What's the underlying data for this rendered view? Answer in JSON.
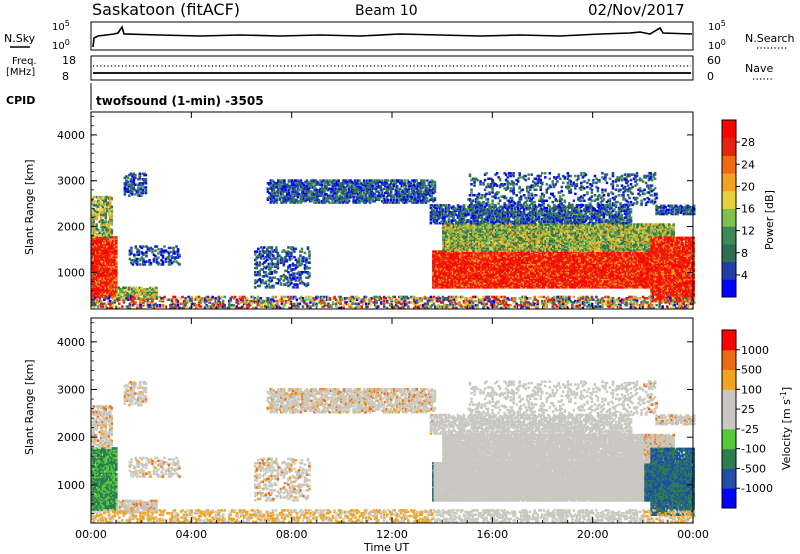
{
  "header": {
    "station": "Saskatoon (fitACF)",
    "beam": "Beam 10",
    "date": "02/Nov/2017"
  },
  "noise_panel": {
    "left_label": "N.Sky",
    "right_label": "N.Search",
    "left_ticks": [
      "10^5",
      "10^0"
    ],
    "right_ticks": [
      "10^5",
      "10^0"
    ]
  },
  "freq_panel": {
    "left_label_line1": "Freq.",
    "left_label_line2": "[MHz]",
    "right_label": "Nave",
    "left_ticks": [
      "18",
      "8"
    ],
    "right_ticks": [
      "60",
      "0"
    ]
  },
  "cpid_panel": {
    "label": "CPID",
    "value": "twofsound (1-min) -3505"
  },
  "colors": {
    "power_scale": [
      "#0000ff",
      "#1f3fa6",
      "#2e6e52",
      "#3c8a57",
      "#7fbf4c",
      "#e3d23a",
      "#f2a31f",
      "#ef6a12",
      "#e8240e",
      "#ff0000"
    ],
    "velocity_scale": [
      "#ff0000",
      "#ef6a12",
      "#f2a31f",
      "#c8c8c0",
      "#c8c8c0",
      "#52c83a",
      "#2e7d52",
      "#1f4fa6",
      "#0000ff"
    ],
    "ground_scatter": "#c8c8c0"
  },
  "chart_data": [
    {
      "type": "heatmap",
      "panel": "power",
      "ylabel": "Slant Range [km]",
      "yticks": [
        "1000",
        "2000",
        "3000",
        "4000"
      ],
      "ylim": [
        200,
        4500
      ],
      "xlim": [
        0,
        24
      ],
      "colorbar_label": "Power [dB]",
      "colorbar_ticks": [
        "4",
        "8",
        "12",
        "16",
        "20",
        "24",
        "28"
      ],
      "colorbar_range": [
        0,
        32
      ]
    },
    {
      "type": "heatmap",
      "panel": "velocity",
      "ylabel": "Slant Range [km]",
      "yticks": [
        "1000",
        "2000",
        "3000",
        "4000"
      ],
      "ylim": [
        200,
        4500
      ],
      "xlim": [
        0,
        24
      ],
      "xlabel": "Time UT",
      "xticks": [
        "00:00",
        "04:00",
        "08:00",
        "12:00",
        "16:00",
        "20:00",
        "00:00"
      ],
      "colorbar_label": "Velocity [m s^-1]",
      "colorbar_ticks": [
        "1000",
        "500",
        "100",
        "25",
        "-25",
        "-100",
        "-500",
        "-1000"
      ]
    }
  ]
}
